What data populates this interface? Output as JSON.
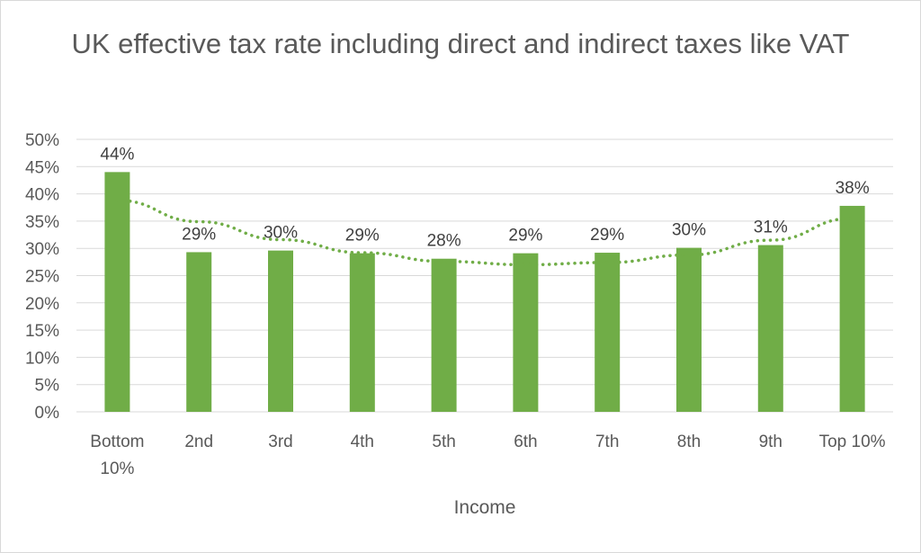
{
  "chart_data": {
    "type": "bar",
    "title": "UK effective tax rate including  direct and indirect taxes like VAT",
    "xlabel": "Income",
    "ylabel": "",
    "categories": [
      "Bottom 10%",
      "2nd",
      "3rd",
      "4th",
      "5th",
      "6th",
      "7th",
      "8th",
      "9th",
      "Top 10%"
    ],
    "values": [
      44,
      29.3,
      29.6,
      29.1,
      28.1,
      29.1,
      29.2,
      30.1,
      30.6,
      37.8
    ],
    "data_labels": [
      "44%",
      "29%",
      "30%",
      "29%",
      "28%",
      "29%",
      "29%",
      "30%",
      "31%",
      "38%"
    ],
    "y_ticks": [
      "0%",
      "5%",
      "10%",
      "15%",
      "20%",
      "25%",
      "30%",
      "35%",
      "40%",
      "45%",
      "50%"
    ],
    "ylim": [
      0,
      50
    ],
    "grid": true,
    "legend": "none",
    "trendline": {
      "type": "polynomial",
      "style": "dotted",
      "values": [
        38.8,
        34.9,
        31.6,
        29.2,
        27.6,
        27,
        27.4,
        28.8,
        31.5,
        35.5
      ]
    },
    "colors": {
      "bar": "#70ad47",
      "trendline": "#70ad47",
      "grid": "#d9d9d9",
      "text": "#595959"
    }
  }
}
